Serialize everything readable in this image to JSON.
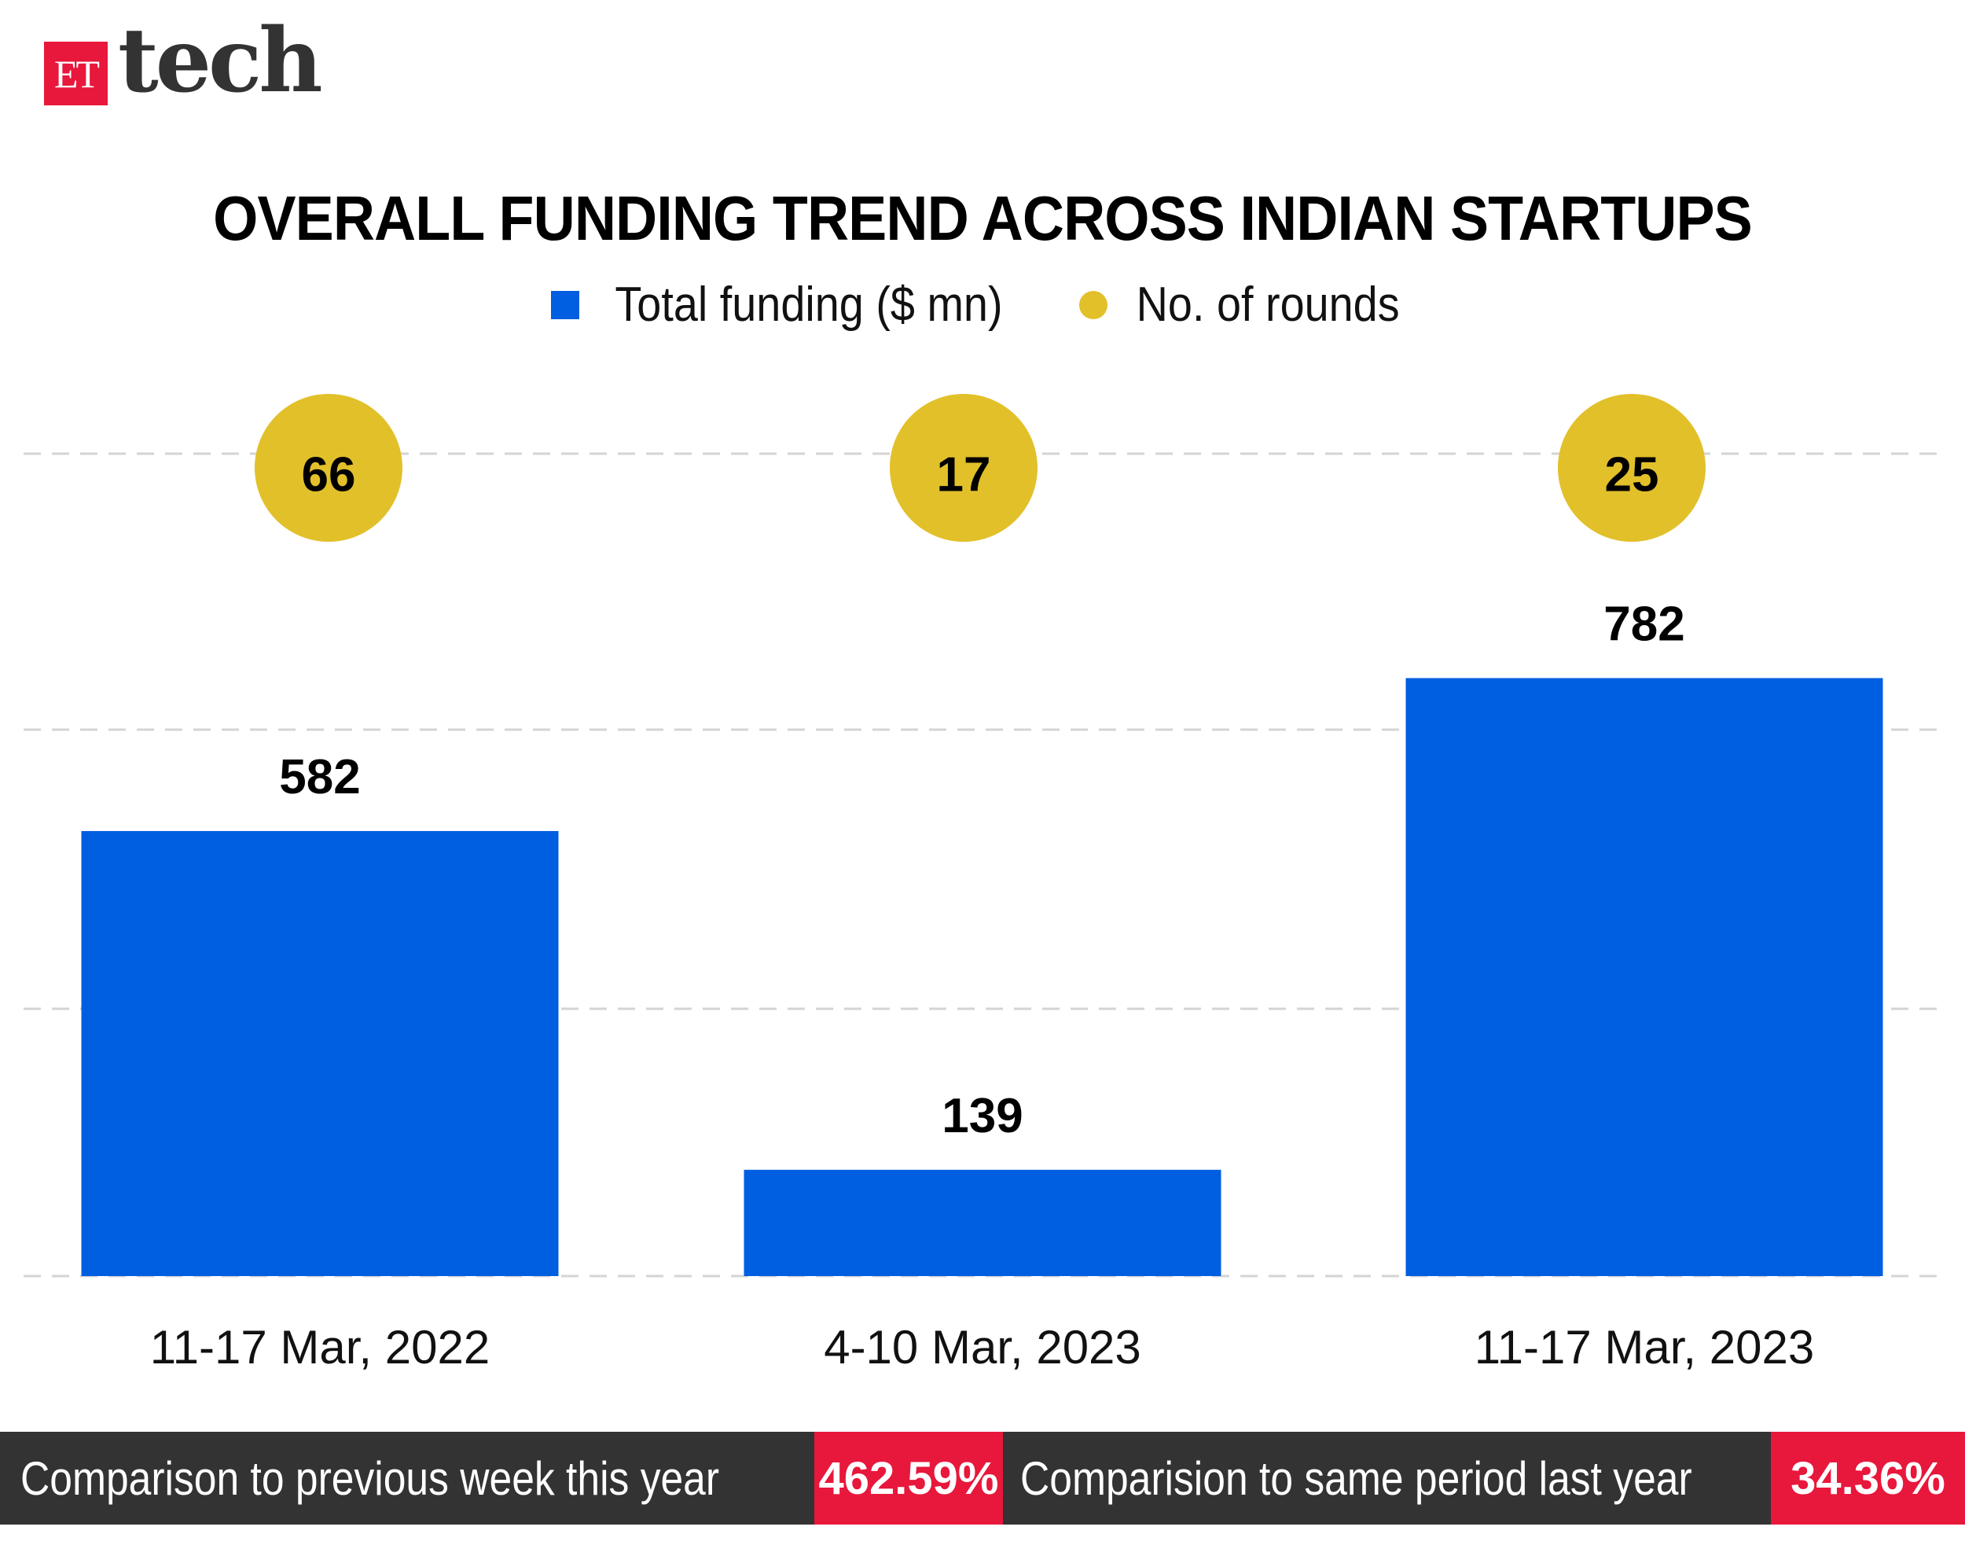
{
  "brand": {
    "logo_box": "ET",
    "logo_word": "tech",
    "colors": {
      "red": "#e8173c",
      "dark": "#333333"
    }
  },
  "chart_data": {
    "type": "bar",
    "title": "OVERALL FUNDING TREND ACROSS INDIAN STARTUPS",
    "categories": [
      "11-17 Mar, 2022",
      "4-10 Mar, 2023",
      "11-17 Mar, 2023"
    ],
    "series": [
      {
        "name": "Total funding ($ mn)",
        "kind": "bar",
        "color": "#005ee0",
        "values": [
          582,
          139,
          782
        ]
      },
      {
        "name": "No. of rounds",
        "kind": "bubble",
        "color": "#e2c02a",
        "values": [
          66,
          17,
          25
        ]
      }
    ],
    "legend": "top-center",
    "grid": true,
    "ylim": [
      0,
      1100
    ]
  },
  "footer": {
    "items": [
      {
        "label": "Comparison to previous week this year",
        "value": "462.59%"
      },
      {
        "label": "Comparision to same period last year",
        "value": "34.36%"
      }
    ]
  }
}
